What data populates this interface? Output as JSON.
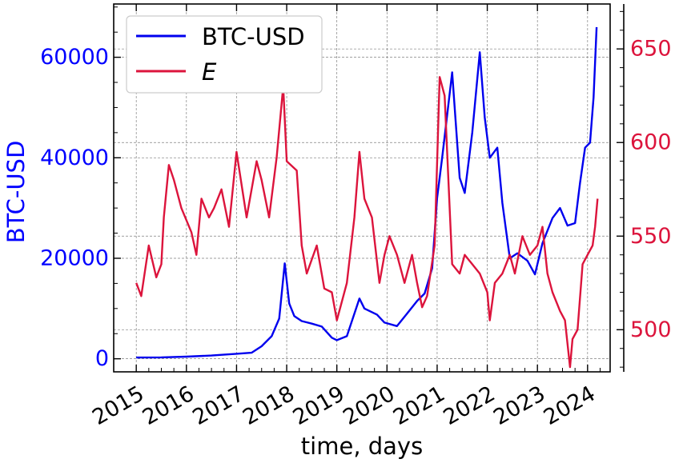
{
  "chart_data": {
    "type": "line",
    "xlabel": "time, days",
    "ylabel_left": "BTC-USD",
    "ylabel_right": "",
    "x_ticks": [
      "2015",
      "2016",
      "2017",
      "2018",
      "2019",
      "2020",
      "2021",
      "2022",
      "2023",
      "2024"
    ],
    "x_range": [
      2014.55,
      2024.45
    ],
    "y_left_ticks": [
      "0",
      "20000",
      "40000",
      "60000"
    ],
    "y_left_range": [
      -2600,
      70600
    ],
    "y_right_ticks": [
      "500",
      "550",
      "600",
      "650"
    ],
    "y_right_range": [
      477.5,
      674.0
    ],
    "grid": true,
    "legend_position": "top-left",
    "colors": {
      "btc": "#0000ee",
      "e": "#dc143c",
      "left_axis": "#0000ff",
      "right_axis": "#dc143c"
    },
    "series": [
      {
        "name": "BTC-USD",
        "axis": "left",
        "x": [
          2015.0,
          2015.5,
          2016.0,
          2016.5,
          2017.0,
          2017.3,
          2017.5,
          2017.7,
          2017.85,
          2017.96,
          2018.05,
          2018.15,
          2018.3,
          2018.5,
          2018.7,
          2018.9,
          2019.0,
          2019.2,
          2019.45,
          2019.55,
          2019.8,
          2019.95,
          2020.2,
          2020.4,
          2020.6,
          2020.75,
          2020.9,
          2021.0,
          2021.1,
          2021.3,
          2021.45,
          2021.55,
          2021.7,
          2021.85,
          2021.95,
          2022.05,
          2022.2,
          2022.3,
          2022.45,
          2022.6,
          2022.8,
          2022.95,
          2023.1,
          2023.3,
          2023.45,
          2023.6,
          2023.75,
          2023.85,
          2023.95,
          2024.05,
          2024.12,
          2024.18
        ],
        "y": [
          250,
          280,
          420,
          650,
          1000,
          1200,
          2500,
          4500,
          8000,
          19000,
          11000,
          8500,
          7500,
          7000,
          6400,
          4200,
          3700,
          4500,
          12000,
          10000,
          8800,
          7200,
          6500,
          9000,
          11500,
          13000,
          18000,
          32000,
          40000,
          57000,
          36000,
          33000,
          45000,
          61000,
          48000,
          40000,
          42000,
          31000,
          20000,
          21000,
          19500,
          16800,
          23000,
          28000,
          30000,
          26500,
          27000,
          35000,
          42000,
          43000,
          52000,
          66000
        ]
      },
      {
        "name": "E",
        "axis": "right",
        "x": [
          2015.0,
          2015.1,
          2015.25,
          2015.4,
          2015.5,
          2015.55,
          2015.65,
          2015.75,
          2015.9,
          2016.1,
          2016.2,
          2016.3,
          2016.45,
          2016.55,
          2016.7,
          2016.85,
          2017.0,
          2017.2,
          2017.4,
          2017.5,
          2017.65,
          2017.8,
          2017.93,
          2018.0,
          2018.2,
          2018.3,
          2018.4,
          2018.6,
          2018.75,
          2018.9,
          2019.0,
          2019.2,
          2019.35,
          2019.45,
          2019.55,
          2019.7,
          2019.85,
          2019.95,
          2020.05,
          2020.2,
          2020.35,
          2020.5,
          2020.6,
          2020.7,
          2020.8,
          2020.95,
          2021.05,
          2021.15,
          2021.3,
          2021.45,
          2021.55,
          2021.7,
          2021.85,
          2022.0,
          2022.05,
          2022.15,
          2022.3,
          2022.45,
          2022.55,
          2022.7,
          2022.85,
          2023.0,
          2023.1,
          2023.2,
          2023.3,
          2023.45,
          2023.55,
          2023.65,
          2023.7,
          2023.8,
          2023.9,
          2024.0,
          2024.1,
          2024.15,
          2024.2
        ],
        "y": [
          525,
          518,
          545,
          528,
          535,
          560,
          588,
          580,
          565,
          552,
          540,
          570,
          560,
          565,
          575,
          555,
          595,
          560,
          590,
          580,
          560,
          592,
          630,
          590,
          585,
          545,
          530,
          545,
          522,
          520,
          505,
          525,
          560,
          595,
          570,
          560,
          525,
          540,
          550,
          540,
          525,
          540,
          525,
          512,
          518,
          545,
          635,
          625,
          535,
          530,
          540,
          535,
          530,
          520,
          505,
          525,
          530,
          540,
          530,
          550,
          540,
          545,
          555,
          530,
          520,
          510,
          505,
          480,
          495,
          500,
          535,
          540,
          545,
          555,
          570
        ]
      }
    ]
  }
}
